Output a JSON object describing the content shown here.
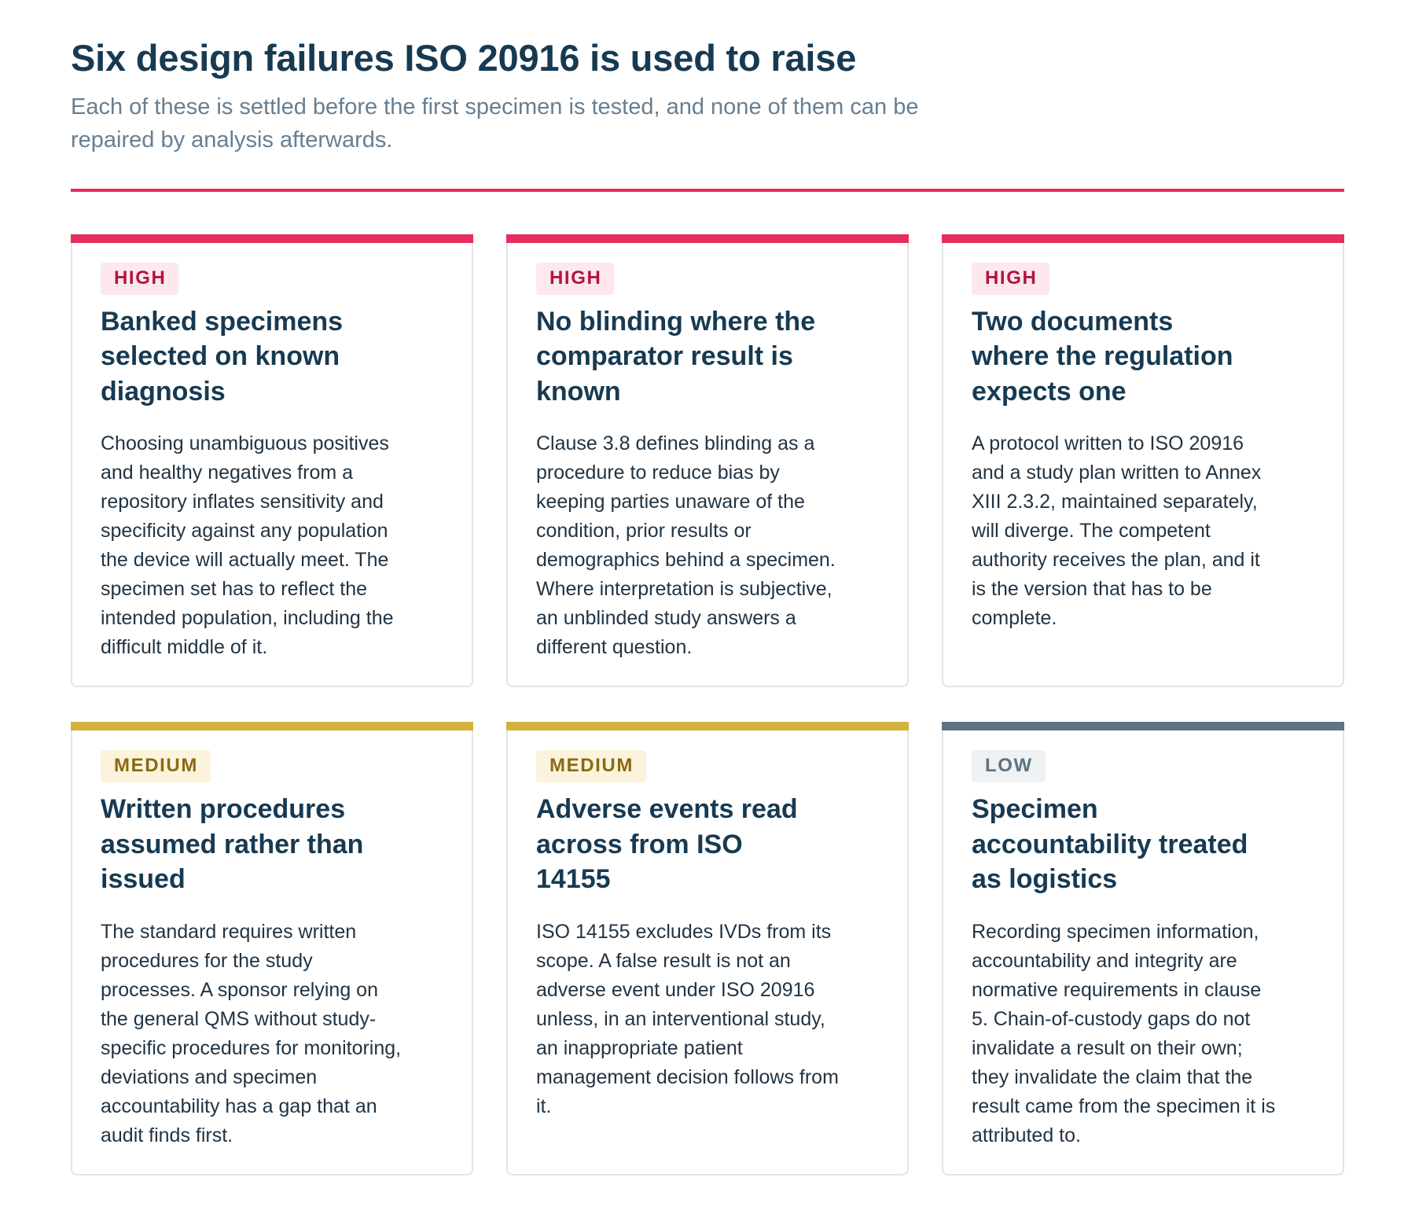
{
  "header": {
    "title": "Six design failures ISO 20916 is used to raise",
    "subtitle": "Each of these is settled before the first specimen is tested, and none of them can be repaired by analysis afterwards."
  },
  "colors": {
    "high": "#e62e5c",
    "medium": "#d4b13c",
    "low": "#5f7382"
  },
  "cards": [
    {
      "severity": "HIGH",
      "title": "Banked specimens selected on known diagnosis",
      "body": "Choosing unambiguous positives and healthy negatives from a repository inflates sensitivity and specificity against any population the device will actually meet. The specimen set has to reflect the intended population, including the difficult middle of it."
    },
    {
      "severity": "HIGH",
      "title": "No blinding where the comparator result is known",
      "body": "Clause 3.8 defines blinding as a procedure to reduce bias by keeping parties unaware of the condition, prior results or demographics behind a specimen. Where interpretation is subjective, an unblinded study answers a different question."
    },
    {
      "severity": "HIGH",
      "title": "Two documents where the regulation expects one",
      "body": "A protocol written to ISO 20916 and a study plan written to Annex XIII 2.3.2, maintained separately, will diverge. The competent authority receives the plan, and it is the version that has to be complete."
    },
    {
      "severity": "MEDIUM",
      "title": "Written procedures assumed rather than issued",
      "body": "The standard requires written procedures for the study processes. A sponsor relying on the general QMS without study-specific procedures for monitoring, deviations and specimen accountability has a gap that an audit finds first."
    },
    {
      "severity": "MEDIUM",
      "title": "Adverse events read across from ISO 14155",
      "body": "ISO 14155 excludes IVDs from its scope. A false result is not an adverse event under ISO 20916 unless, in an interventional study, an inappropriate patient management decision follows from it."
    },
    {
      "severity": "LOW",
      "title": "Specimen accountability treated as logistics",
      "body": "Recording specimen information, accountability and integrity are normative requirements in clause 5. Chain-of-custody gaps do not invalidate a result on their own; they invalidate the claim that the result came from the specimen it is attributed to."
    }
  ]
}
